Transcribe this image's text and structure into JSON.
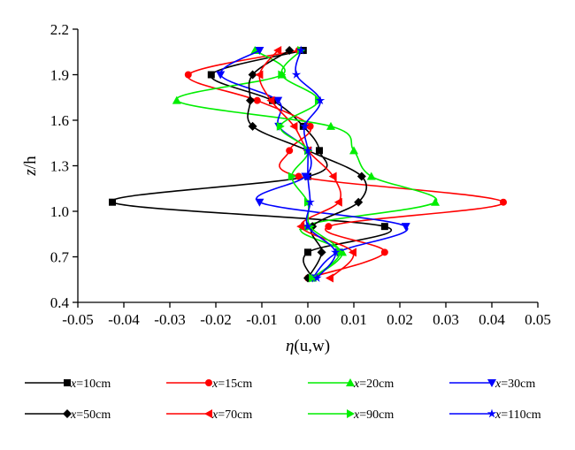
{
  "chart_data": {
    "type": "line",
    "xlabel_italic": "η",
    "xlabel_rest": "(u,w)",
    "ylabel_italic": "z",
    "ylabel_rest": "/h",
    "xlim": [
      -0.05,
      0.05
    ],
    "ylim": [
      0.4,
      2.2
    ],
    "xticks": [
      "-0.05",
      "-0.04",
      "-0.03",
      "-0.02",
      "-0.01",
      "0.00",
      "0.01",
      "0.02",
      "0.03",
      "0.04",
      "0.05"
    ],
    "yticks": [
      "0.4",
      "0.7",
      "1.0",
      "1.3",
      "1.6",
      "1.9",
      "2.2"
    ],
    "grid": false,
    "legend_position": "bottom",
    "y": [
      0.56,
      0.73,
      0.9,
      1.06,
      1.23,
      1.4,
      1.56,
      1.73,
      1.9,
      2.06
    ],
    "series": [
      {
        "name_var": "x",
        "name_rest": "=10cm",
        "color": "#000000",
        "marker": "square",
        "x": [
          0.001,
          0.0,
          0.0167,
          -0.0425,
          0.0,
          0.0025,
          -0.001,
          -0.0077,
          -0.021,
          -0.001
        ]
      },
      {
        "name_var": "x",
        "name_rest": "=15cm",
        "color": "#ff0000",
        "marker": "circle",
        "x": [
          0.0,
          0.0167,
          0.0045,
          0.0425,
          -0.002,
          -0.004,
          0.0005,
          -0.011,
          -0.026,
          -0.002
        ]
      },
      {
        "name_var": "x",
        "name_rest": "=20cm",
        "color": "#00ee00",
        "marker": "triangle-up",
        "x": [
          0.001,
          0.0075,
          -0.001,
          0.0277,
          0.0138,
          0.01,
          0.005,
          -0.0285,
          -0.0056,
          -0.0115
        ]
      },
      {
        "name_var": "x",
        "name_rest": "=30cm",
        "color": "#0000ff",
        "marker": "triangle-down",
        "x": [
          0.001,
          0.0065,
          0.0213,
          -0.0105,
          -0.0005,
          0.0,
          -0.0063,
          -0.0065,
          -0.019,
          -0.0105
        ]
      },
      {
        "name_var": "x",
        "name_rest": "=50cm",
        "color": "#000000",
        "marker": "diamond",
        "x": [
          0.0,
          0.003,
          0.001,
          0.011,
          0.0117,
          0.0,
          -0.012,
          -0.0125,
          -0.012,
          -0.004
        ]
      },
      {
        "name_var": "x",
        "name_rest": "=70cm",
        "color": "#ff0000",
        "marker": "triangle-left",
        "x": [
          0.0048,
          0.0098,
          -0.0015,
          0.0067,
          0.0055,
          0.0,
          -0.003,
          -0.008,
          -0.0105,
          -0.0065
        ]
      },
      {
        "name_var": "x",
        "name_rest": "=90cm",
        "color": "#00ee00",
        "marker": "triangle-right",
        "x": [
          0.001,
          0.007,
          0.0005,
          0.0,
          -0.0035,
          0.0,
          -0.006,
          0.0023,
          -0.0057,
          -0.0015
        ]
      },
      {
        "name_var": "x",
        "name_rest": "=110cm",
        "color": "#0000ff",
        "marker": "star",
        "x": [
          0.002,
          0.006,
          0.0,
          0.0005,
          0.0,
          0.0,
          -0.0007,
          0.0027,
          -0.0025,
          -0.0015
        ]
      }
    ]
  }
}
